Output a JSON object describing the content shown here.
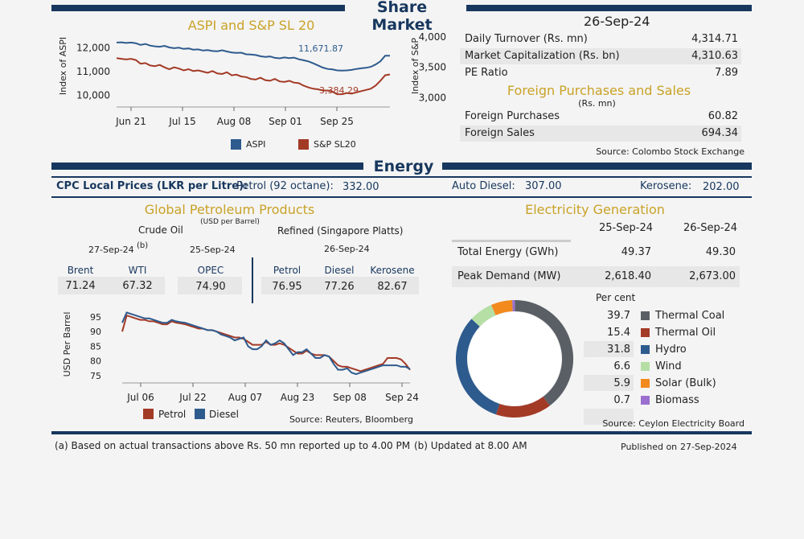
{
  "share_market": {
    "title": "Share Market",
    "date": "26-Sep-24",
    "stats": [
      {
        "label": "Daily Turnover (Rs. mn)",
        "value": "4,314.71"
      },
      {
        "label": "Market Capitalization (Rs. bn)",
        "value": "4,310.63"
      },
      {
        "label": "PE Ratio",
        "value": "7.89"
      }
    ],
    "foreign_title": "Foreign Purchases and Sales",
    "foreign_unit": "(Rs. mn)",
    "foreign": [
      {
        "label": "Foreign Purchases",
        "value": "60.82"
      },
      {
        "label": "Foreign Sales",
        "value": "694.34"
      }
    ],
    "source": "Source: Colombo Stock Exchange"
  },
  "energy": {
    "title": "Energy",
    "cpc_label": "CPC Local Prices (LKR per Litre):",
    "petrol_label": "Petrol (92 octane):",
    "petrol_value": "332.00",
    "diesel_label": "Auto Diesel:",
    "diesel_value": "307.00",
    "kerosene_label": "Kerosene:",
    "kerosene_value": "202.00",
    "gpp_title": "Global Petroleum Products",
    "gpp_unit": "(USD per Barrel)",
    "crude_title": "Crude Oil",
    "refined_title": "Refined (Singapore Platts)",
    "crude_date": "27-Sep-24",
    "crude_note": "(b)",
    "opec_date": "25-Sep-24",
    "refined_date": "26-Sep-24",
    "prices": [
      {
        "name": "Brent",
        "value": "71.24"
      },
      {
        "name": "WTI",
        "value": "67.32"
      },
      {
        "name": "OPEC",
        "value": "74.90"
      },
      {
        "name": "Petrol",
        "value": "76.95"
      },
      {
        "name": "Diesel",
        "value": "77.26"
      },
      {
        "name": "Kerosene",
        "value": "82.67"
      }
    ],
    "petrol_source": "Source: Reuters, Bloomberg",
    "elec_title": "Electricity Generation",
    "elec_dates": [
      "25-Sep-24",
      "26-Sep-24"
    ],
    "elec_rows": [
      {
        "label": "Total Energy (GWh)",
        "v1": "49.37",
        "v2": "49.30"
      },
      {
        "label": "Peak Demand (MW)",
        "v1": "2,618.40",
        "v2": "2,673.00"
      }
    ],
    "per_cent_label": "Per cent",
    "elec_source": "Source: Ceylon Electricity Board"
  },
  "footer": {
    "note_a": "(a) Based on actual transactions above Rs. 50 mn reported up to 4.00 PM",
    "note_b": "(b) Updated at 8.00 AM",
    "published_label": "Published on",
    "published_date": "27-Sep-2024"
  },
  "colors": {
    "navy": "#17375e",
    "gold": "#c9a227",
    "aspi": "#2e5b8e",
    "snp": "#a33a26",
    "thermal_coal": "#5a5f66",
    "thermal_oil": "#a33a26",
    "hydro": "#2e5b8e",
    "wind": "#b5dfa5",
    "solar": "#f28a1e",
    "biomass": "#9b6fcf"
  },
  "chart_data": [
    {
      "type": "line",
      "title": "ASPI and S&P SL 20",
      "ylabel": "Index of ASPI",
      "y2label": "Index of S&P",
      "x_ticks": [
        "Jun 21",
        "Jul 15",
        "Aug 08",
        "Sep 01",
        "Sep 25"
      ],
      "ylim": [
        9500,
        12600
      ],
      "y_ticks": [
        "10,000",
        "11,000",
        "12,000"
      ],
      "y2lim": [
        2850,
        4050
      ],
      "y2_ticks": [
        "3,000",
        "3,500",
        "4,000"
      ],
      "legend": "bottom",
      "series": [
        {
          "name": "ASPI",
          "axis": "left",
          "last_label": "11,671.87",
          "values": [
            12230,
            12240,
            12210,
            12230,
            12200,
            12130,
            12170,
            12100,
            12070,
            12050,
            12090,
            12020,
            11990,
            12010,
            11960,
            11980,
            11930,
            11940,
            11890,
            11910,
            11870,
            11860,
            11900,
            11850,
            11810,
            11790,
            11800,
            11730,
            11720,
            11700,
            11650,
            11620,
            11640,
            11580,
            11560,
            11600,
            11570,
            11590,
            11520,
            11480,
            11430,
            11350,
            11260,
            11170,
            11110,
            11090,
            11050,
            11040,
            11050,
            11070,
            11110,
            11140,
            11160,
            11200,
            11300,
            11430,
            11670,
            11671.87
          ]
        },
        {
          "name": "S&P SL20",
          "axis": "right",
          "last_label": "3,384.29",
          "values": [
            3650,
            3640,
            3630,
            3640,
            3620,
            3560,
            3570,
            3530,
            3520,
            3540,
            3500,
            3470,
            3500,
            3480,
            3450,
            3470,
            3440,
            3450,
            3430,
            3410,
            3440,
            3400,
            3390,
            3420,
            3370,
            3380,
            3350,
            3340,
            3310,
            3300,
            3330,
            3290,
            3280,
            3310,
            3270,
            3260,
            3280,
            3250,
            3240,
            3200,
            3170,
            3150,
            3140,
            3120,
            3120,
            3100,
            3060,
            3060,
            3080,
            3070,
            3090,
            3110,
            3130,
            3150,
            3200,
            3280,
            3370,
            3384.29
          ]
        }
      ]
    },
    {
      "type": "line",
      "title": "",
      "ylabel": "USD Per Barrel",
      "x_ticks": [
        "Jul 06",
        "Jul 22",
        "Aug 07",
        "Aug 23",
        "Sep 08",
        "Sep 24"
      ],
      "ylim": [
        72.5,
        98
      ],
      "y_ticks": [
        "75",
        "80",
        "85",
        "90",
        "95"
      ],
      "legend": "bottom",
      "series": [
        {
          "name": "Petrol",
          "values": [
            90,
            95.5,
            95,
            94.5,
            94,
            94,
            93.5,
            93.5,
            93,
            92.5,
            92.5,
            93.5,
            93,
            92.8,
            92.5,
            92,
            91.5,
            91,
            91,
            90.5,
            90.5,
            90,
            89.5,
            89,
            88.5,
            88,
            88,
            87.5,
            86.5,
            85.5,
            85.5,
            85.5,
            86.5,
            85.5,
            85.5,
            86,
            85.5,
            84.5,
            83.5,
            82.5,
            82.5,
            83.5,
            82.5,
            82,
            82,
            82,
            81.5,
            80,
            78.5,
            78,
            78,
            77.5,
            77,
            76.5,
            77,
            77.5,
            78,
            78.5,
            79,
            81,
            81,
            81,
            80.5,
            79,
            76.95
          ]
        },
        {
          "name": "Diesel",
          "values": [
            93,
            96.5,
            96,
            95.5,
            95,
            94.5,
            94.5,
            94,
            93.5,
            93,
            93,
            94,
            93.5,
            93.2,
            93,
            92.5,
            92,
            91.5,
            91,
            90.5,
            90.5,
            90,
            89,
            88.5,
            88,
            87,
            87.5,
            88,
            85,
            84,
            84,
            85,
            87,
            85.5,
            86,
            87,
            86,
            84,
            82,
            83,
            83,
            84,
            82.5,
            81,
            81,
            82,
            81.5,
            79,
            77,
            77,
            77.5,
            76,
            75.5,
            76,
            76.5,
            77,
            77.5,
            78,
            78.5,
            78.5,
            78.5,
            78.5,
            78,
            78,
            77.26
          ]
        }
      ]
    },
    {
      "type": "pie",
      "title": "Electricity Generation",
      "unit": "Per cent",
      "labels": [
        "Thermal Coal",
        "Thermal Oil",
        "Hydro",
        "Wind",
        "Solar (Bulk)",
        "Biomass"
      ],
      "values": [
        39.7,
        15.4,
        31.8,
        6.6,
        5.9,
        0.7
      ],
      "value_labels": [
        "39.7",
        "15.4",
        "31.8",
        "6.6",
        "5.9",
        "0.7"
      ],
      "legend": "right"
    }
  ]
}
